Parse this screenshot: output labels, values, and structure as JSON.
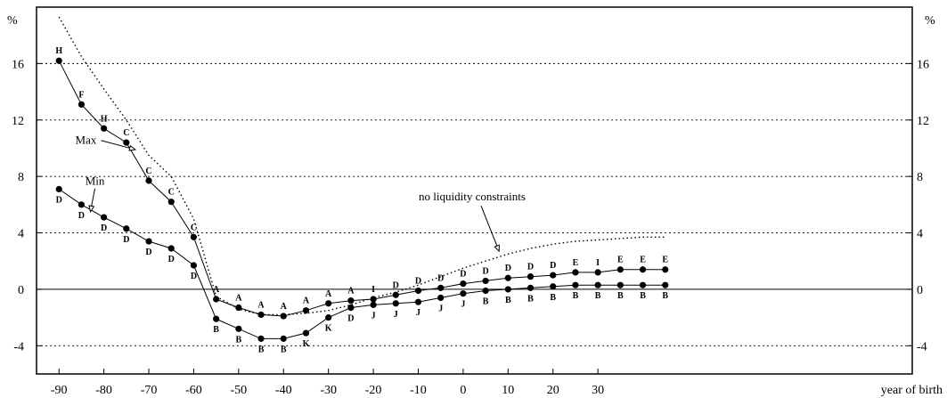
{
  "chart_data": {
    "type": "line",
    "title": "",
    "xlabel": "year of birth",
    "ylabel": "%",
    "xlim": [
      -95,
      100
    ],
    "ylim": [
      -6,
      20
    ],
    "x_ticks": [
      -90,
      -80,
      -70,
      -60,
      -50,
      -40,
      -30,
      -20,
      -10,
      0,
      10,
      20,
      30
    ],
    "y_ticks": [
      -4,
      0,
      4,
      8,
      12,
      16
    ],
    "grid": "horizontal dotted",
    "x": [
      -90,
      -85,
      -80,
      -75,
      -70,
      -65,
      -60,
      -55,
      -50,
      -45,
      -40,
      -35,
      -30,
      -25,
      -20,
      -15,
      -10,
      -5,
      0,
      5,
      10,
      15,
      20,
      25,
      30,
      35,
      40,
      45
    ],
    "series": [
      {
        "name": "",
        "style": "solid-dots",
        "values": [
          16.2,
          13.1,
          11.4,
          10.4,
          7.7,
          6.2,
          3.7,
          -0.7,
          -1.3,
          -1.8,
          -1.9,
          -1.5,
          -1.0,
          -0.8,
          -0.7,
          -0.4,
          -0.1,
          0.1,
          0.4,
          0.6,
          0.8,
          0.9,
          1.0,
          1.2,
          1.2,
          1.4,
          1.4,
          1.4
        ],
        "point_labels": [
          "H",
          "F",
          "H",
          "C",
          "C",
          "C",
          "C",
          "A",
          "A",
          "A",
          "A",
          "A",
          "A",
          "A",
          "I",
          "D",
          "D",
          "D",
          "D",
          "D",
          "D",
          "D",
          "D",
          "E",
          "I",
          "E",
          "E",
          "E"
        ]
      },
      {
        "name": "",
        "style": "solid-dots",
        "values": [
          7.1,
          6.0,
          5.1,
          4.3,
          3.4,
          2.9,
          1.7,
          -2.1,
          -2.8,
          -3.5,
          -3.5,
          -3.1,
          -2.0,
          -1.3,
          -1.1,
          -1.0,
          -0.9,
          -0.6,
          -0.3,
          -0.1,
          0.0,
          0.1,
          0.2,
          0.3,
          0.3,
          0.3,
          0.3,
          0.3
        ],
        "point_labels": [
          "D",
          "D",
          "D",
          "D",
          "D",
          "D",
          "D",
          "B",
          "B",
          "B",
          "B",
          "K",
          "K",
          "D",
          "J",
          "J",
          "J",
          "J",
          "J",
          "B",
          "B",
          "B",
          "B",
          "B",
          "B",
          "B",
          "B",
          "B"
        ]
      },
      {
        "name": "no liquidity constraints",
        "style": "dotted",
        "x": [
          -90,
          -85,
          -80,
          -75,
          -70,
          -65,
          -60,
          -55,
          -50,
          -45,
          -40,
          -35,
          -30,
          -25,
          -20,
          -15,
          -10,
          -5,
          0,
          5,
          10,
          15,
          20,
          25,
          30,
          35,
          40,
          45
        ],
        "values": [
          19.3,
          16.5,
          14.2,
          12.0,
          9.5,
          8.0,
          5.0,
          -0.5,
          -1.4,
          -1.8,
          -1.8,
          -1.7,
          -1.5,
          -1.1,
          -0.6,
          -0.2,
          0.3,
          0.9,
          1.5,
          2.0,
          2.5,
          2.9,
          3.2,
          3.4,
          3.5,
          3.6,
          3.7,
          3.7
        ]
      }
    ],
    "annotations": [
      {
        "text": "Max",
        "x": -84,
        "y": 10.3,
        "arrow_to": [
          -73,
          9.9
        ]
      },
      {
        "text": "Min",
        "x": -82,
        "y": 7.4,
        "arrow_to": [
          -83,
          5.5
        ]
      },
      {
        "text": "no liquidity constraints",
        "x": 2,
        "y": 6.3,
        "arrow_to": [
          8,
          2.7
        ]
      }
    ]
  }
}
